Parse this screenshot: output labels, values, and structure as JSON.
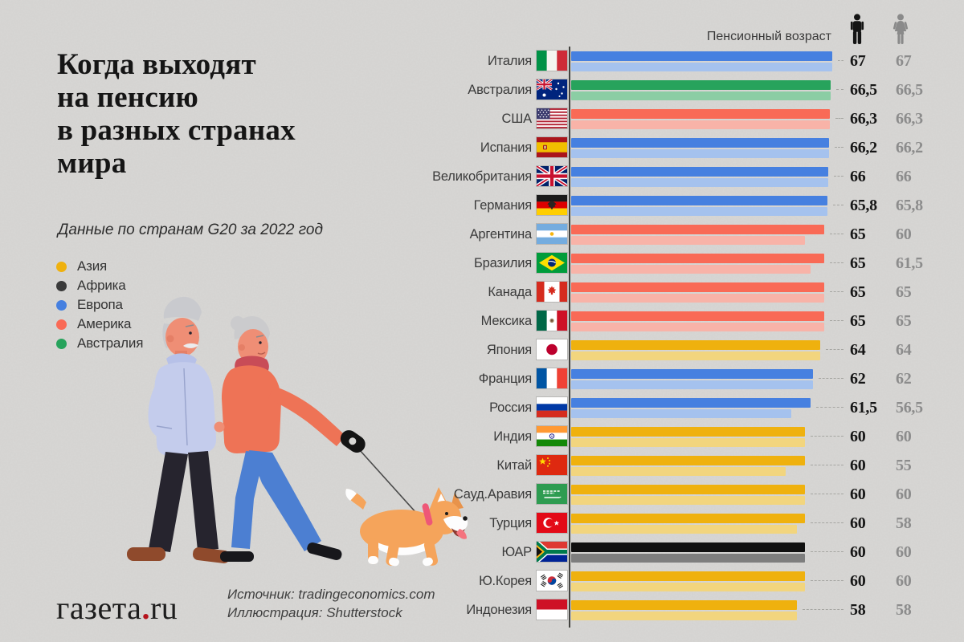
{
  "colors": {
    "background": "#D8D7D5",
    "axis_line": "#43433F",
    "male_number": "#161616",
    "female_number": "#8C8C8C",
    "logo_dot": "#B5121B"
  },
  "title": "Когда выходят\nна пенсию\nв разных странах\nмира",
  "subtitle": "Данные по странам G20 за 2022 год",
  "legend": [
    {
      "label": "Азия",
      "region": "asia",
      "color": "#EFB10E"
    },
    {
      "label": "Африка",
      "region": "africa",
      "color": "#3A3A3A"
    },
    {
      "label": "Европа",
      "region": "europe",
      "color": "#4680E0"
    },
    {
      "label": "Америка",
      "region": "america",
      "color": "#F96A56"
    },
    {
      "label": "Австралия",
      "region": "australia",
      "color": "#27A35C"
    }
  ],
  "chart_header": {
    "axis_title": "Пенсионный возраст",
    "male_icon": "male-pictogram-icon",
    "female_icon": "female-pictogram-icon",
    "male_icon_color": "#141414",
    "female_icon_color": "#8A8A8A"
  },
  "region_colors": {
    "asia": {
      "male": "#EFB10E",
      "female": "#F2D57E"
    },
    "africa": {
      "male": "#101010",
      "female": "#7E7E7E"
    },
    "europe": {
      "male": "#4680E0",
      "female": "#A5C2EE"
    },
    "america": {
      "male": "#F96A56",
      "female": "#F8B3A8"
    },
    "australia": {
      "male": "#27A35C",
      "female": "#8BCDA4"
    }
  },
  "chart_data": {
    "type": "bar",
    "orientation": "horizontal",
    "title": "Когда выходят на пенсию в разных странах мира",
    "subtitle": "Данные по странам G20 за 2022 год",
    "axis_title": "Пенсионный возраст",
    "xlim": [
      0,
      67
    ],
    "grid": false,
    "series_names": [
      "male",
      "female"
    ],
    "rows": [
      {
        "country": "Италия",
        "flag": "italy",
        "flag_icon": "flag-italy-icon",
        "region": "europe",
        "male": 67,
        "female": 67,
        "male_label": "67",
        "female_label": "67"
      },
      {
        "country": "Австралия",
        "flag": "australia",
        "flag_icon": "flag-australia-icon",
        "region": "australia",
        "male": 66.5,
        "female": 66.5,
        "male_label": "66,5",
        "female_label": "66,5"
      },
      {
        "country": "США",
        "flag": "usa",
        "flag_icon": "flag-usa-icon",
        "region": "america",
        "male": 66.3,
        "female": 66.3,
        "male_label": "66,3",
        "female_label": "66,3"
      },
      {
        "country": "Испания",
        "flag": "spain",
        "flag_icon": "flag-spain-icon",
        "region": "europe",
        "male": 66.2,
        "female": 66.2,
        "male_label": "66,2",
        "female_label": "66,2"
      },
      {
        "country": "Великобритания",
        "flag": "uk",
        "flag_icon": "flag-uk-icon",
        "region": "europe",
        "male": 66,
        "female": 66,
        "male_label": "66",
        "female_label": "66"
      },
      {
        "country": "Германия",
        "flag": "germany",
        "flag_icon": "flag-germany-icon",
        "region": "europe",
        "male": 65.8,
        "female": 65.8,
        "male_label": "65,8",
        "female_label": "65,8"
      },
      {
        "country": "Аргентина",
        "flag": "argentina",
        "flag_icon": "flag-argentina-icon",
        "region": "america",
        "male": 65,
        "female": 60,
        "male_label": "65",
        "female_label": "60"
      },
      {
        "country": "Бразилия",
        "flag": "brazil",
        "flag_icon": "flag-brazil-icon",
        "region": "america",
        "male": 65,
        "female": 61.5,
        "male_label": "65",
        "female_label": "61,5"
      },
      {
        "country": "Канада",
        "flag": "canada",
        "flag_icon": "flag-canada-icon",
        "region": "america",
        "male": 65,
        "female": 65,
        "male_label": "65",
        "female_label": "65"
      },
      {
        "country": "Мексика",
        "flag": "mexico",
        "flag_icon": "flag-mexico-icon",
        "region": "america",
        "male": 65,
        "female": 65,
        "male_label": "65",
        "female_label": "65"
      },
      {
        "country": "Япония",
        "flag": "japan",
        "flag_icon": "flag-japan-icon",
        "region": "asia",
        "male": 64,
        "female": 64,
        "male_label": "64",
        "female_label": "64"
      },
      {
        "country": "Франция",
        "flag": "france",
        "flag_icon": "flag-france-icon",
        "region": "europe",
        "male": 62,
        "female": 62,
        "male_label": "62",
        "female_label": "62"
      },
      {
        "country": "Россия",
        "flag": "russia",
        "flag_icon": "flag-russia-icon",
        "region": "europe",
        "male": 61.5,
        "female": 56.5,
        "male_label": "61,5",
        "female_label": "56,5"
      },
      {
        "country": "Индия",
        "flag": "india",
        "flag_icon": "flag-india-icon",
        "region": "asia",
        "male": 60,
        "female": 60,
        "male_label": "60",
        "female_label": "60"
      },
      {
        "country": "Китай",
        "flag": "china",
        "flag_icon": "flag-china-icon",
        "region": "asia",
        "male": 60,
        "female": 55,
        "male_label": "60",
        "female_label": "55"
      },
      {
        "country": "Сауд.Аравия",
        "flag": "saudi-arabia",
        "flag_icon": "flag-saudi-arabia-icon",
        "region": "asia",
        "male": 60,
        "female": 60,
        "male_label": "60",
        "female_label": "60"
      },
      {
        "country": "Турция",
        "flag": "turkey",
        "flag_icon": "flag-turkey-icon",
        "region": "asia",
        "male": 60,
        "female": 58,
        "male_label": "60",
        "female_label": "58"
      },
      {
        "country": "ЮАР",
        "flag": "south-africa",
        "flag_icon": "flag-south-africa-icon",
        "region": "africa",
        "male": 60,
        "female": 60,
        "male_label": "60",
        "female_label": "60"
      },
      {
        "country": "Ю.Корея",
        "flag": "south-korea",
        "flag_icon": "flag-south-korea-icon",
        "region": "asia",
        "male": 60,
        "female": 60,
        "male_label": "60",
        "female_label": "60"
      },
      {
        "country": "Индонезия",
        "flag": "indonesia",
        "flag_icon": "flag-indonesia-icon",
        "region": "asia",
        "male": 58,
        "female": 58,
        "male_label": "58",
        "female_label": "58"
      }
    ]
  },
  "footer": {
    "logo": {
      "part1": "газета",
      "dot": ".",
      "part2": "ru"
    },
    "source_line1": "Источник: tradingeconomics.com",
    "source_line2": "Иллюстрация: Shutterstock"
  }
}
